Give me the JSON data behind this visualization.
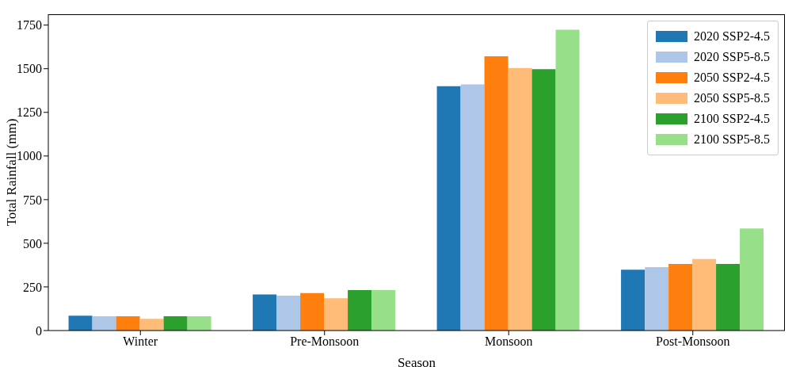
{
  "chart_data": {
    "type": "bar",
    "xlabel": "Season",
    "ylabel": "Total Rainfall (mm)",
    "categories": [
      "Winter",
      "Pre-Monsoon",
      "Monsoon",
      "Post-Monsoon"
    ],
    "series": [
      {
        "name": "2020 SSP2-4.5",
        "color": "#1f77b4",
        "values": [
          85,
          207,
          1400,
          348
        ]
      },
      {
        "name": "2020 SSP5-8.5",
        "color": "#aec7e8",
        "values": [
          82,
          200,
          1410,
          363
        ]
      },
      {
        "name": "2050 SSP2-4.5",
        "color": "#ff7f0e",
        "values": [
          82,
          215,
          1571,
          381
        ]
      },
      {
        "name": "2050 SSP5-8.5",
        "color": "#ffbb78",
        "values": [
          67,
          185,
          1504,
          410
        ]
      },
      {
        "name": "2100 SSP2-4.5",
        "color": "#2ca02c",
        "values": [
          82,
          232,
          1498,
          381
        ]
      },
      {
        "name": "2100 SSP5-8.5",
        "color": "#98df8a",
        "values": [
          82,
          232,
          1723,
          585
        ]
      }
    ],
    "ylim": [
      0,
      1812
    ],
    "yticks": [
      0,
      250,
      500,
      750,
      1000,
      1250,
      1500,
      1750
    ],
    "grid": false,
    "legend": "top right"
  }
}
